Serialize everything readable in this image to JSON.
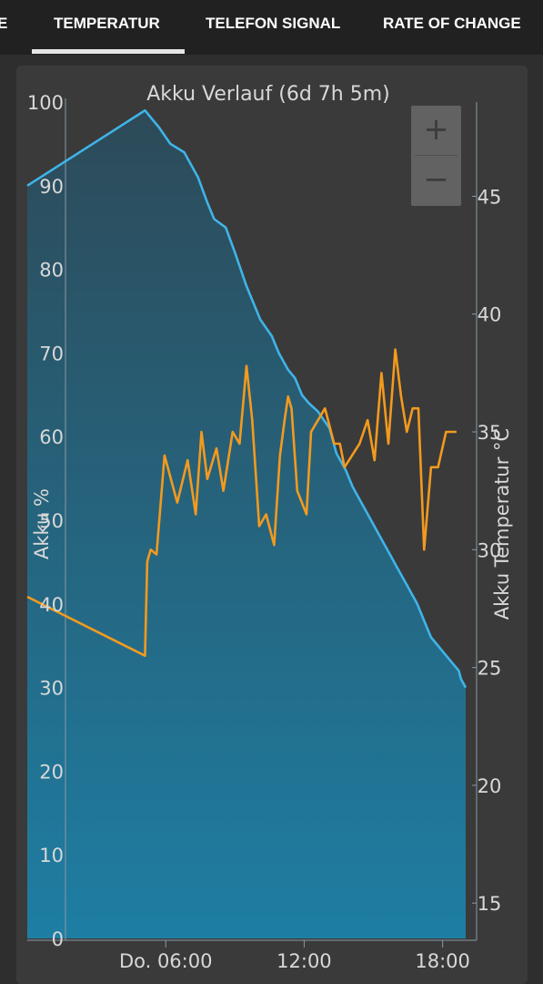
{
  "tabs": [
    {
      "label": "E"
    },
    {
      "label": "TEMPERATUR"
    },
    {
      "label": "TELEFON SIGNAL"
    },
    {
      "label": "RATE OF CHANGE"
    }
  ],
  "zoom": {
    "in_label": "+",
    "out_label": "−"
  },
  "colors": {
    "battery_line": "#3fb4e8",
    "temperature_line": "#f39a1e",
    "fill_top": "#2d4a58",
    "fill_bottom": "#1e7ea3",
    "axis": "#8a9aa4",
    "text": "#d8d8d8"
  },
  "chart_data": {
    "type": "line",
    "title": "Akku Verlauf (6d 7h 5m)",
    "x_axis": {
      "ticks": [
        "Do. 06:00",
        "12:00",
        "18:00"
      ],
      "tick_hours": [
        6,
        12,
        18
      ],
      "range_hours": [
        0,
        19
      ]
    },
    "y_left": {
      "label": "Akku %",
      "ticks": [
        "0",
        "10",
        "20",
        "30",
        "40",
        "50",
        "60",
        "70",
        "80",
        "90",
        "100"
      ],
      "range": [
        0,
        100
      ]
    },
    "y_right": {
      "label": "Akku Temperatur °C",
      "ticks": [
        "15",
        "20",
        "25",
        "30",
        "35",
        "40",
        "45"
      ],
      "range": [
        13.5,
        49
      ]
    },
    "series": [
      {
        "axis": "left",
        "style": "area",
        "x": [
          0,
          5.1,
          5.4,
          5.7,
          6.2,
          6.8,
          7.4,
          7.8,
          8.1,
          8.6,
          9.0,
          9.5,
          10.1,
          10.6,
          10.9,
          11.3,
          11.6,
          11.9,
          12.2,
          12.6,
          13.1,
          13.4,
          13.8,
          14.1,
          14.5,
          14.9,
          15.3,
          15.7,
          16.1,
          16.5,
          16.9,
          17.2,
          17.5,
          17.8,
          18.1,
          18.4,
          18.7,
          18.8,
          19.0
        ],
        "values": [
          90,
          99,
          98,
          97,
          95,
          94,
          91,
          88,
          86,
          85,
          82,
          78,
          74,
          72,
          70,
          68,
          67,
          65,
          64,
          63,
          61,
          58,
          56,
          54,
          52,
          50,
          48,
          46,
          44,
          42,
          40,
          38,
          36,
          35,
          34,
          33,
          32,
          31,
          30
        ]
      },
      {
        "axis": "right",
        "style": "line",
        "x": [
          0,
          5.1,
          5.2,
          5.35,
          5.6,
          5.95,
          6.5,
          6.95,
          7.3,
          7.55,
          7.8,
          8.2,
          8.5,
          8.9,
          9.2,
          9.5,
          9.75,
          10.05,
          10.35,
          10.7,
          10.95,
          11.15,
          11.3,
          11.45,
          11.7,
          12.1,
          12.3,
          12.9,
          13.3,
          13.55,
          13.75,
          14.4,
          14.75,
          15.05,
          15.35,
          15.65,
          15.95,
          16.2,
          16.45,
          16.7,
          16.95,
          17.2,
          17.5,
          17.8,
          18.15,
          18.6
        ],
        "values": [
          28,
          25.5,
          29.5,
          30,
          29.8,
          34,
          32,
          33.8,
          31.5,
          35,
          33,
          34.3,
          32.5,
          35,
          34.5,
          37.8,
          35.5,
          31,
          31.5,
          30.2,
          34,
          35.5,
          36.5,
          36,
          32.5,
          31.5,
          35,
          36,
          34.5,
          34.5,
          33.5,
          34.5,
          35.5,
          33.8,
          37.5,
          34.5,
          38.5,
          36.5,
          35,
          36,
          36,
          30,
          33.5,
          33.5,
          35,
          35
        ]
      }
    ]
  }
}
